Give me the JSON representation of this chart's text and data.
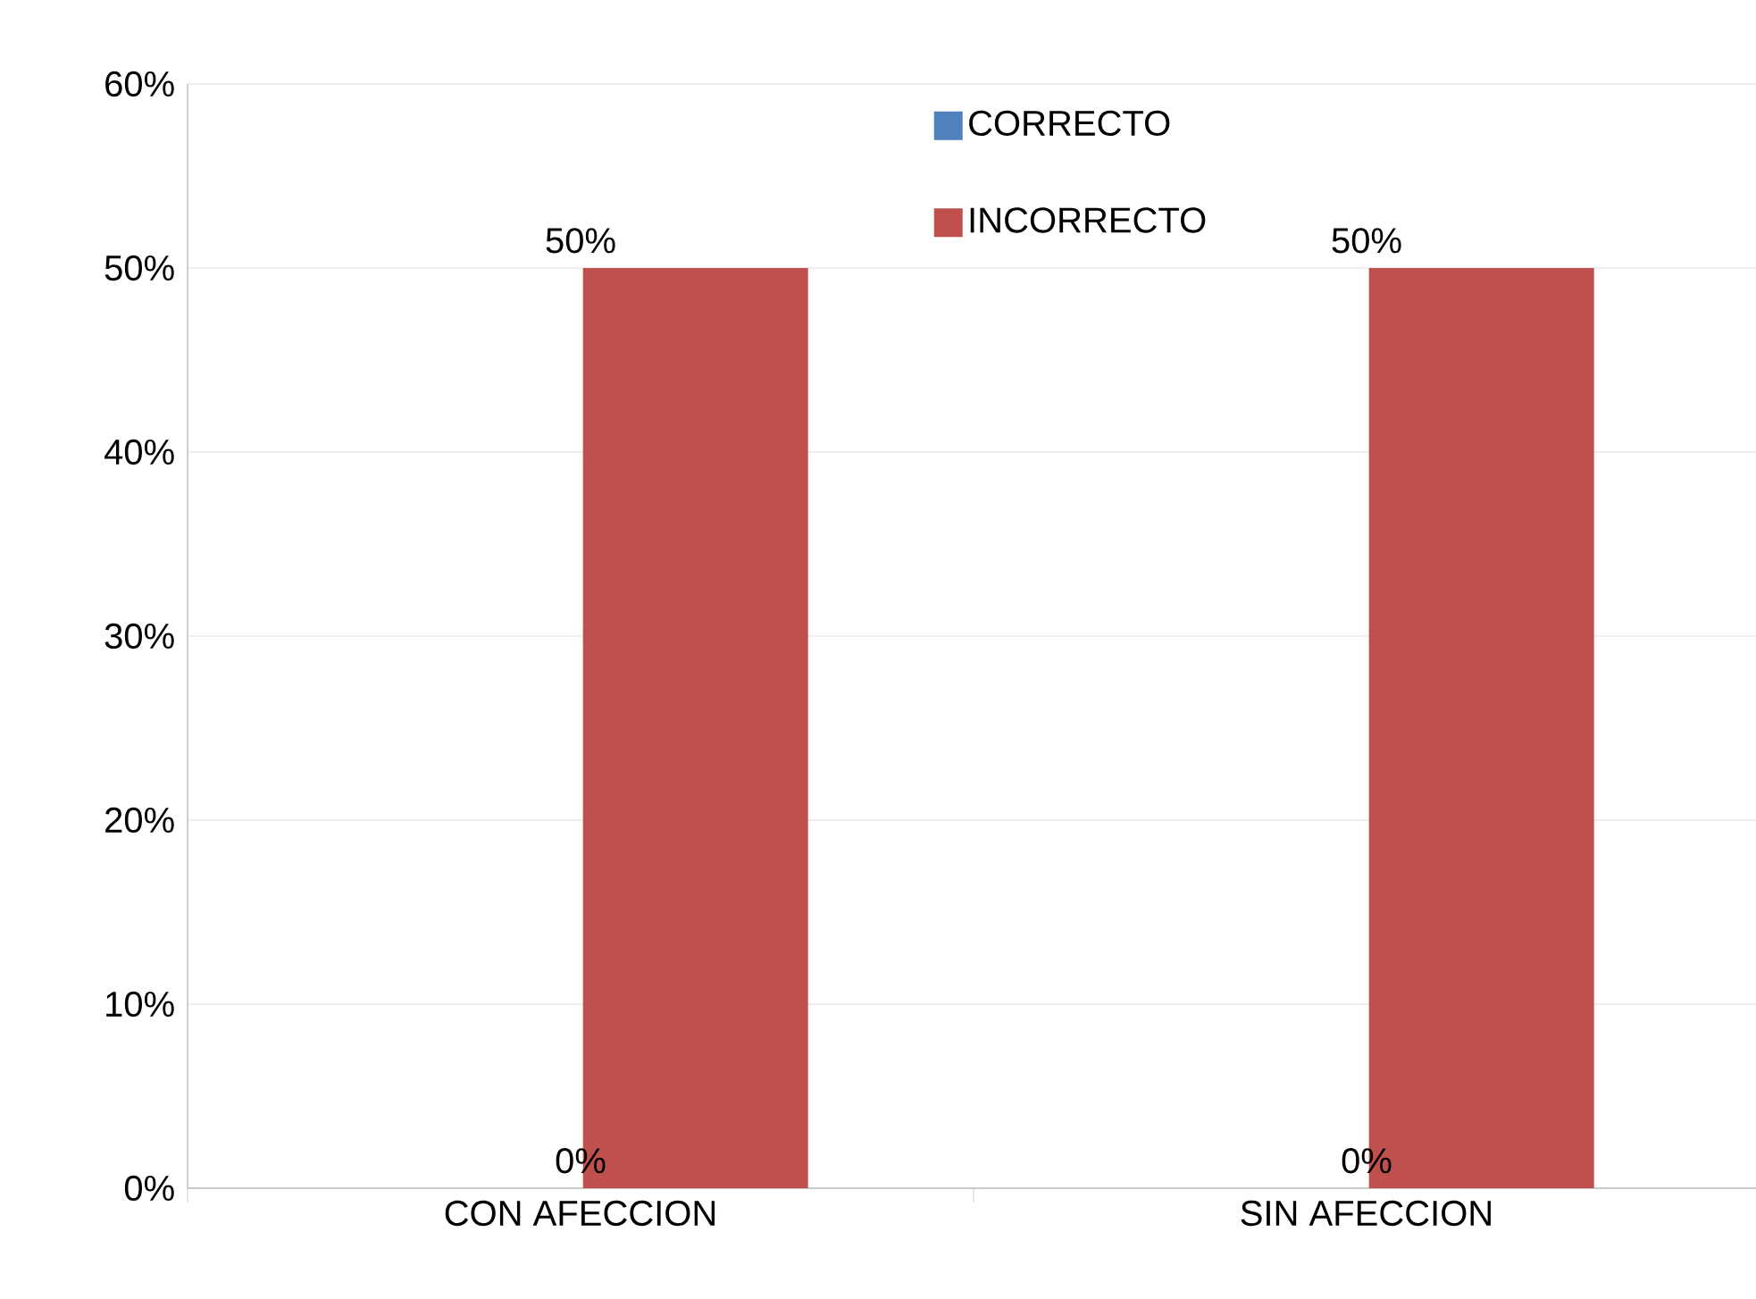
{
  "chart_data": {
    "type": "bar",
    "categories": [
      "CON AFECCION",
      "SIN AFECCION"
    ],
    "series": [
      {
        "name": "CORRECTO",
        "color": "#4f81bd",
        "values": [
          0,
          0
        ],
        "value_labels": [
          "0%",
          "0%"
        ]
      },
      {
        "name": "INCORRECTO",
        "color": "#c0504d",
        "values": [
          50,
          50
        ],
        "value_labels": [
          "50%",
          "50%"
        ]
      }
    ],
    "ylim": [
      0,
      60
    ],
    "yticks": [
      {
        "value": 0,
        "label": "0%"
      },
      {
        "value": 10,
        "label": "10%"
      },
      {
        "value": 20,
        "label": "20%"
      },
      {
        "value": 30,
        "label": "30%"
      },
      {
        "value": 40,
        "label": "40%"
      },
      {
        "value": 50,
        "label": "50%"
      },
      {
        "value": 60,
        "label": "60%"
      }
    ],
    "grid": "y",
    "legend": "top"
  }
}
